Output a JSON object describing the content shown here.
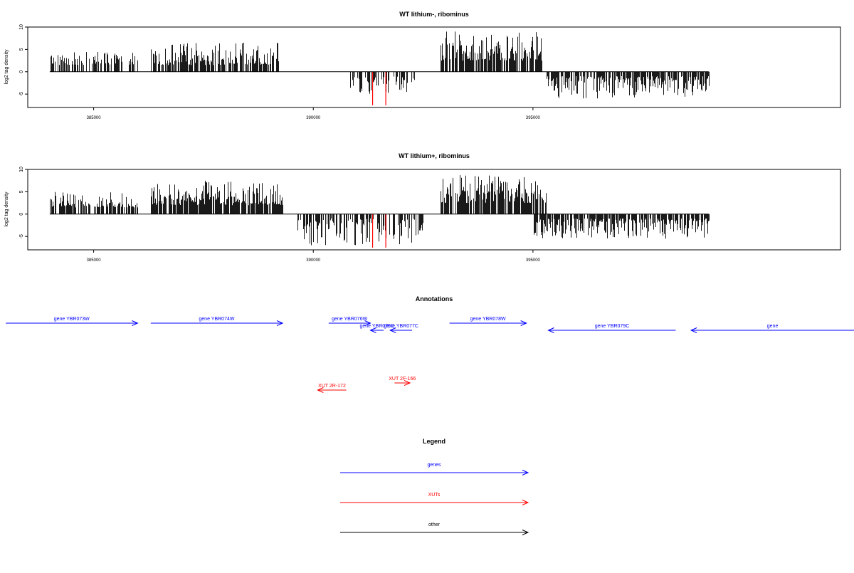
{
  "chart_data": [
    {
      "type": "bar",
      "title": "WT lithium-, ribominus",
      "ylabel": "log2 tag density",
      "xlabel": "",
      "xlim": [
        383500,
        402000
      ],
      "ylim": [
        -8,
        10
      ],
      "x_ticks": [
        385000,
        390000,
        395000
      ],
      "x_tick_labels": [
        "385000",
        "390000",
        "395000"
      ],
      "y_ticks": [
        -5,
        0,
        5,
        10
      ],
      "y_tick_labels": [
        "-5",
        "0",
        "5",
        "10"
      ],
      "grid": false,
      "regions": [
        {
          "start": 384000,
          "end": 386000,
          "sign": 1,
          "min": 1.5,
          "max": 4.5,
          "density": 0.55
        },
        {
          "start": 386300,
          "end": 389200,
          "sign": 1,
          "min": 1.5,
          "max": 6.5,
          "density": 0.75
        },
        {
          "start": 390800,
          "end": 392300,
          "sign": -1,
          "min": 1.0,
          "max": 5.0,
          "density": 0.5
        },
        {
          "start": 392900,
          "end": 395200,
          "sign": 1,
          "min": 2.5,
          "max": 9.0,
          "density": 0.8
        },
        {
          "start": 395300,
          "end": 399000,
          "sign": -1,
          "min": 1.0,
          "max": 6.0,
          "density": 0.7
        }
      ],
      "highlights": [
        {
          "x": 391350,
          "value": -7.5,
          "color": "#ff0000"
        },
        {
          "x": 391650,
          "value": -7.5,
          "color": "#ff0000"
        }
      ]
    },
    {
      "type": "bar",
      "title": "WT lithium+, ribominus",
      "ylabel": "log2 tag density",
      "xlabel": "",
      "xlim": [
        383500,
        402000
      ],
      "ylim": [
        -8,
        10
      ],
      "x_ticks": [
        385000,
        390000,
        395000
      ],
      "x_tick_labels": [
        "385000",
        "390000",
        "395000"
      ],
      "y_ticks": [
        -5,
        0,
        5,
        10
      ],
      "y_tick_labels": [
        "-5",
        "0",
        "5",
        "10"
      ],
      "grid": false,
      "regions": [
        {
          "start": 384000,
          "end": 386000,
          "sign": 1,
          "min": 1.5,
          "max": 5.0,
          "density": 0.6
        },
        {
          "start": 386300,
          "end": 389300,
          "sign": 1,
          "min": 2.0,
          "max": 7.5,
          "density": 0.85
        },
        {
          "start": 389600,
          "end": 392500,
          "sign": -1,
          "min": 1.0,
          "max": 7.0,
          "density": 0.6
        },
        {
          "start": 392900,
          "end": 395300,
          "sign": 1,
          "min": 2.5,
          "max": 9.0,
          "density": 0.85
        },
        {
          "start": 395000,
          "end": 399000,
          "sign": -1,
          "min": 1.0,
          "max": 5.5,
          "density": 0.75
        }
      ],
      "highlights": [
        {
          "x": 391350,
          "value": -7.5,
          "color": "#ff0000"
        },
        {
          "x": 391650,
          "value": -7.5,
          "color": "#ff0000"
        }
      ]
    }
  ],
  "annotations": {
    "title": "Annotations",
    "genes": [
      {
        "label": "gene YBR073W",
        "start": 383000,
        "end": 386000,
        "strand": "+",
        "row": 1
      },
      {
        "label": "gene YBR074W",
        "start": 386300,
        "end": 389300,
        "strand": "+",
        "row": 1
      },
      {
        "label": "gene YBR076W",
        "start": 390350,
        "end": 391300,
        "strand": "+",
        "row": 1
      },
      {
        "label": "gene YBR076C",
        "start": 391300,
        "end": 391600,
        "strand": "-",
        "row": 2
      },
      {
        "label": "gene YBR077C",
        "start": 391750,
        "end": 392250,
        "strand": "-",
        "row": 2
      },
      {
        "label": "gene YBR078W",
        "start": 393100,
        "end": 394850,
        "strand": "+",
        "row": 1
      },
      {
        "label": "gene YBR079C",
        "start": 395350,
        "end": 398250,
        "strand": "-",
        "row": 2
      },
      {
        "label": "gene",
        "start": 398600,
        "end": 402500,
        "strand": "-",
        "row": 2
      }
    ],
    "xuts": [
      {
        "label": "XUT 2R-172",
        "start": 390100,
        "end": 390750,
        "strand": "-",
        "row": 2
      },
      {
        "label": "XUT 2F-166",
        "start": 391850,
        "end": 392200,
        "strand": "+",
        "row": 1
      }
    ]
  },
  "legend": {
    "title": "Legend",
    "entries": [
      {
        "label": "genes",
        "color": "#0000ff"
      },
      {
        "label": "XUTs",
        "color": "#ff0000"
      },
      {
        "label": "other",
        "color": "#000000"
      }
    ]
  }
}
